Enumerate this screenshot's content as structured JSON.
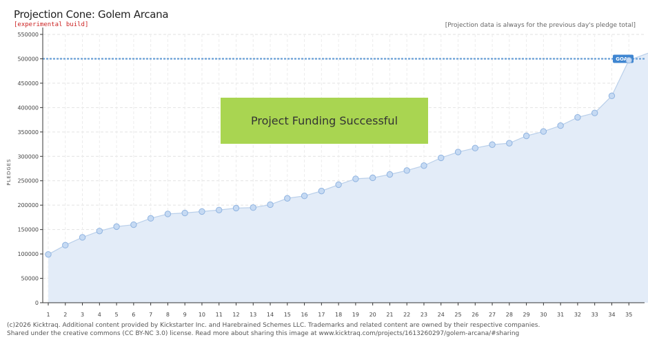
{
  "header": {
    "title": "Projection Cone: Golem Arcana",
    "subtitle": "[experimental build]",
    "note": "[Projection data is always for the previous day's pledge total]"
  },
  "footer": {
    "line1": "(c)2026 Kicktraq. Additional content provided by Kickstarter Inc. and Harebrained Schemes LLC. Trademarks and related content are owned by their respective companies.",
    "line2": "Shared under the creative commons (CC BY-NC 3.0) license. Read more about sharing this image at www.kicktraq.com/projects/1613260297/golem-arcana/#sharing"
  },
  "chart_data": {
    "type": "area",
    "ylabel": "PLEDGES",
    "ylim": [
      0,
      550000
    ],
    "yticks": [
      0,
      50000,
      100000,
      150000,
      200000,
      250000,
      300000,
      350000,
      400000,
      450000,
      500000,
      550000
    ],
    "x": [
      1,
      2,
      3,
      4,
      5,
      6,
      7,
      8,
      9,
      10,
      11,
      12,
      13,
      14,
      15,
      16,
      17,
      18,
      19,
      20,
      21,
      22,
      23,
      24,
      25,
      26,
      27,
      28,
      29,
      30,
      31,
      32,
      33,
      34,
      35
    ],
    "values": [
      99000,
      118000,
      134000,
      147000,
      156000,
      160000,
      173000,
      182000,
      184000,
      187000,
      190000,
      194000,
      195000,
      201000,
      214000,
      219000,
      229000,
      242000,
      254000,
      256000,
      263000,
      271000,
      281000,
      297000,
      309000,
      317000,
      324000,
      327000,
      342000,
      351000,
      363000,
      380000,
      389000,
      424000,
      497000
    ],
    "goal": 500000,
    "goal_label": "GOAL",
    "banner": "Project Funding Successful",
    "grid": true,
    "colors": {
      "area": "#e3ecf8",
      "line": "#b9cfea",
      "point_fill": "#c6daf3",
      "point_stroke": "#8fb3e0",
      "goal_line": "#6fa3d9",
      "goal_pill": "#3f86d1",
      "banner": "#a9d551"
    }
  }
}
